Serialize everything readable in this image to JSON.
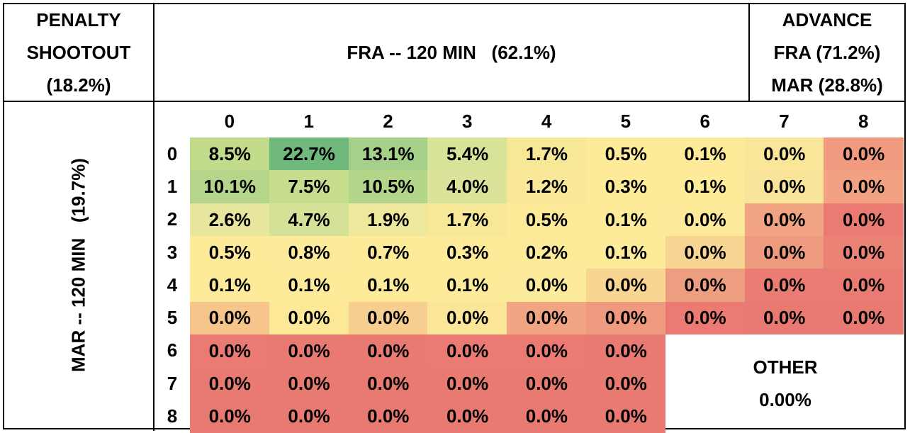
{
  "headers": {
    "shootout": [
      "PENALTY",
      "SHOOTOUT",
      "(18.2%)"
    ],
    "fra": "FRA -- 120 MIN   (62.1%)",
    "advance": [
      "ADVANCE",
      "FRA (71.2%)",
      "MAR (28.8%)"
    ],
    "mar": "MAR -- 120 MIN   (19.7%)",
    "other_label": "OTHER",
    "other_value": "0.00%"
  },
  "chart_data": {
    "type": "heatmap",
    "title": "",
    "xlabel": "FRA -- 120 MIN   (62.1%)",
    "ylabel": "MAR -- 120 MIN   (19.7%)",
    "x": [
      "0",
      "1",
      "2",
      "3",
      "4",
      "5",
      "6",
      "7",
      "8"
    ],
    "y": [
      "0",
      "1",
      "2",
      "3",
      "4",
      "5",
      "6",
      "7",
      "8"
    ],
    "values": [
      [
        "8.5%",
        "22.7%",
        "13.1%",
        "5.4%",
        "1.7%",
        "0.5%",
        "0.1%",
        "0.0%",
        "0.0%"
      ],
      [
        "10.1%",
        "7.5%",
        "10.5%",
        "4.0%",
        "1.2%",
        "0.3%",
        "0.1%",
        "0.0%",
        "0.0%"
      ],
      [
        "2.6%",
        "4.7%",
        "1.9%",
        "1.7%",
        "0.5%",
        "0.1%",
        "0.0%",
        "0.0%",
        "0.0%"
      ],
      [
        "0.5%",
        "0.8%",
        "0.7%",
        "0.3%",
        "0.2%",
        "0.1%",
        "0.0%",
        "0.0%",
        "0.0%"
      ],
      [
        "0.1%",
        "0.1%",
        "0.1%",
        "0.1%",
        "0.0%",
        "0.0%",
        "0.0%",
        "0.0%",
        "0.0%"
      ],
      [
        "0.0%",
        "0.0%",
        "0.0%",
        "0.0%",
        "0.0%",
        "0.0%",
        "0.0%",
        "0.0%",
        "0.0%"
      ],
      [
        "0.0%",
        "0.0%",
        "0.0%",
        "0.0%",
        "0.0%",
        "0.0%",
        null,
        null,
        null
      ],
      [
        "0.0%",
        "0.0%",
        "0.0%",
        "0.0%",
        "0.0%",
        "0.0%",
        null,
        null,
        null
      ],
      [
        "0.0%",
        "0.0%",
        "0.0%",
        "0.0%",
        "0.0%",
        "0.0%",
        null,
        null,
        null
      ]
    ],
    "colors": [
      [
        "#c1db8a",
        "#6fb97c",
        "#a5d08a",
        "#d8e39a",
        "#f7e898",
        "#fdeb9a",
        "#fdeb9a",
        "#fae699",
        "#f29a7f"
      ],
      [
        "#b5d68a",
        "#c6dd8e",
        "#b3d58a",
        "#dbe39b",
        "#f9e899",
        "#fdeb9a",
        "#fdeb9a",
        "#f9e59a",
        "#f2a282"
      ],
      [
        "#e6e69c",
        "#d5e196",
        "#eee89c",
        "#f7e898",
        "#fdeb9a",
        "#fdeb9a",
        "#fcea9a",
        "#f0a482",
        "#ea7a72"
      ],
      [
        "#fdeb9a",
        "#fceb9a",
        "#fdeb9a",
        "#fdeb9a",
        "#fdeb9a",
        "#fdeb9a",
        "#f6d592",
        "#ee9a7e",
        "#ea8376"
      ],
      [
        "#fdeb9a",
        "#fdeb9a",
        "#fdeb9a",
        "#fdeb9a",
        "#fceb9a",
        "#f9d592",
        "#ee9e80",
        "#ea7c73",
        "#e97b73"
      ],
      [
        "#f5c58b",
        "#fce897",
        "#f6cf90",
        "#fbe598",
        "#f1a482",
        "#ef9a7f",
        "#ea7a72",
        "#e97a72",
        "#e97a72"
      ],
      [
        "#ea7a72",
        "#e97a72",
        "#e97a72",
        "#ea7a72",
        "#ea7a72",
        "#e97a72",
        null,
        null,
        null
      ],
      [
        "#e97a72",
        "#e97a72",
        "#e97a72",
        "#e97a72",
        "#e97a72",
        "#e97a72",
        null,
        null,
        null
      ],
      [
        "#e97a72",
        "#e97a72",
        "#e97a72",
        "#e97a72",
        "#e97a72",
        "#e97a72",
        null,
        null,
        null
      ]
    ]
  }
}
